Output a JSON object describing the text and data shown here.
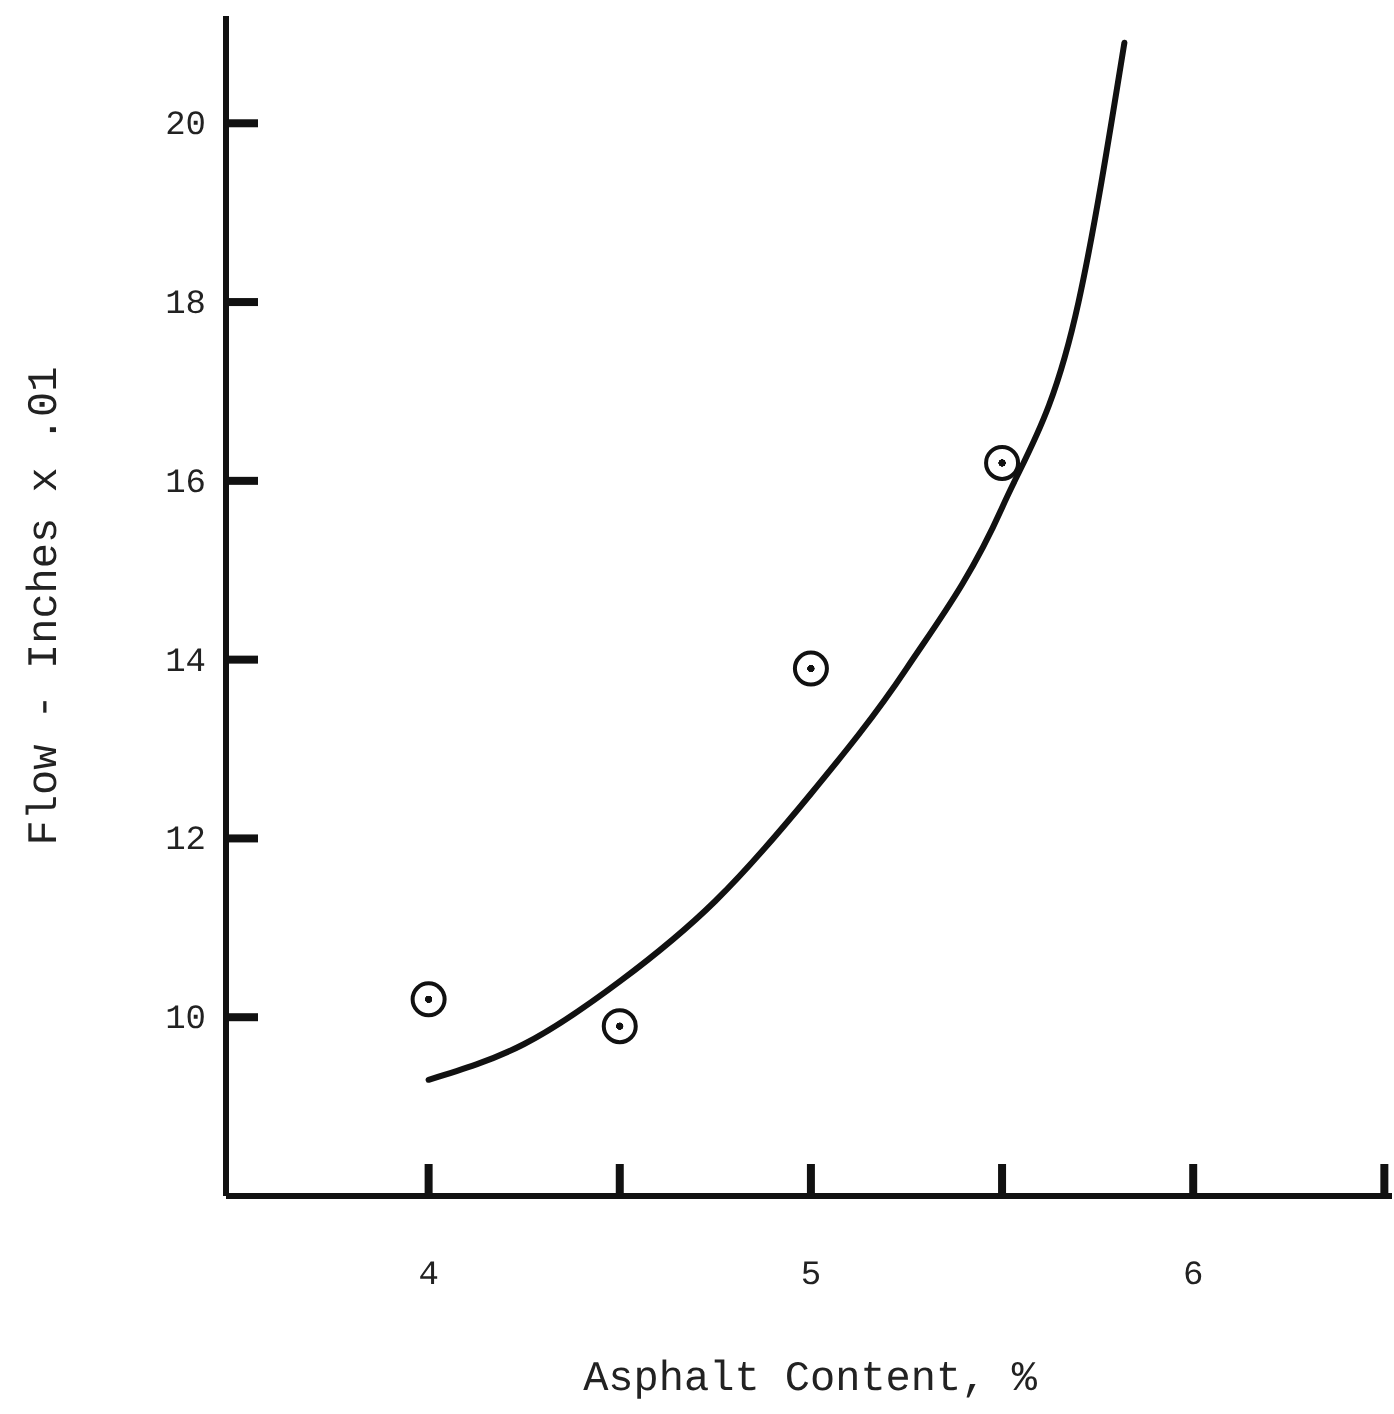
{
  "chart_data": {
    "type": "scatter",
    "xlabel": "Asphalt Content, %",
    "ylabel": "Flow - Inches x .01",
    "xlim": [
      3.47,
      6.52
    ],
    "ylim": [
      8,
      21.2
    ],
    "xticks": [
      4,
      {
        "value": 4.5,
        "label": null
      },
      5,
      {
        "value": 5.5,
        "label": null
      },
      6,
      {
        "value": 6.5,
        "label": null
      }
    ],
    "yticks": [
      10,
      12,
      14,
      16,
      18,
      20
    ],
    "grid": false,
    "series": [
      {
        "color": "#111111",
        "marker": "circle",
        "x": [
          4.0,
          4.5,
          5.0,
          5.5
        ],
        "values": [
          10.2,
          9.9,
          13.9,
          16.2
        ]
      },
      {
        "type": "line",
        "color": "#111111",
        "line_style": "solid",
        "x": [
          4.0,
          4.25,
          4.5,
          4.75,
          5.0,
          5.25,
          5.5,
          5.7,
          5.82
        ],
        "values": [
          9.3,
          9.7,
          10.4,
          11.3,
          12.5,
          13.9,
          15.7,
          18.0,
          20.9
        ]
      }
    ]
  }
}
